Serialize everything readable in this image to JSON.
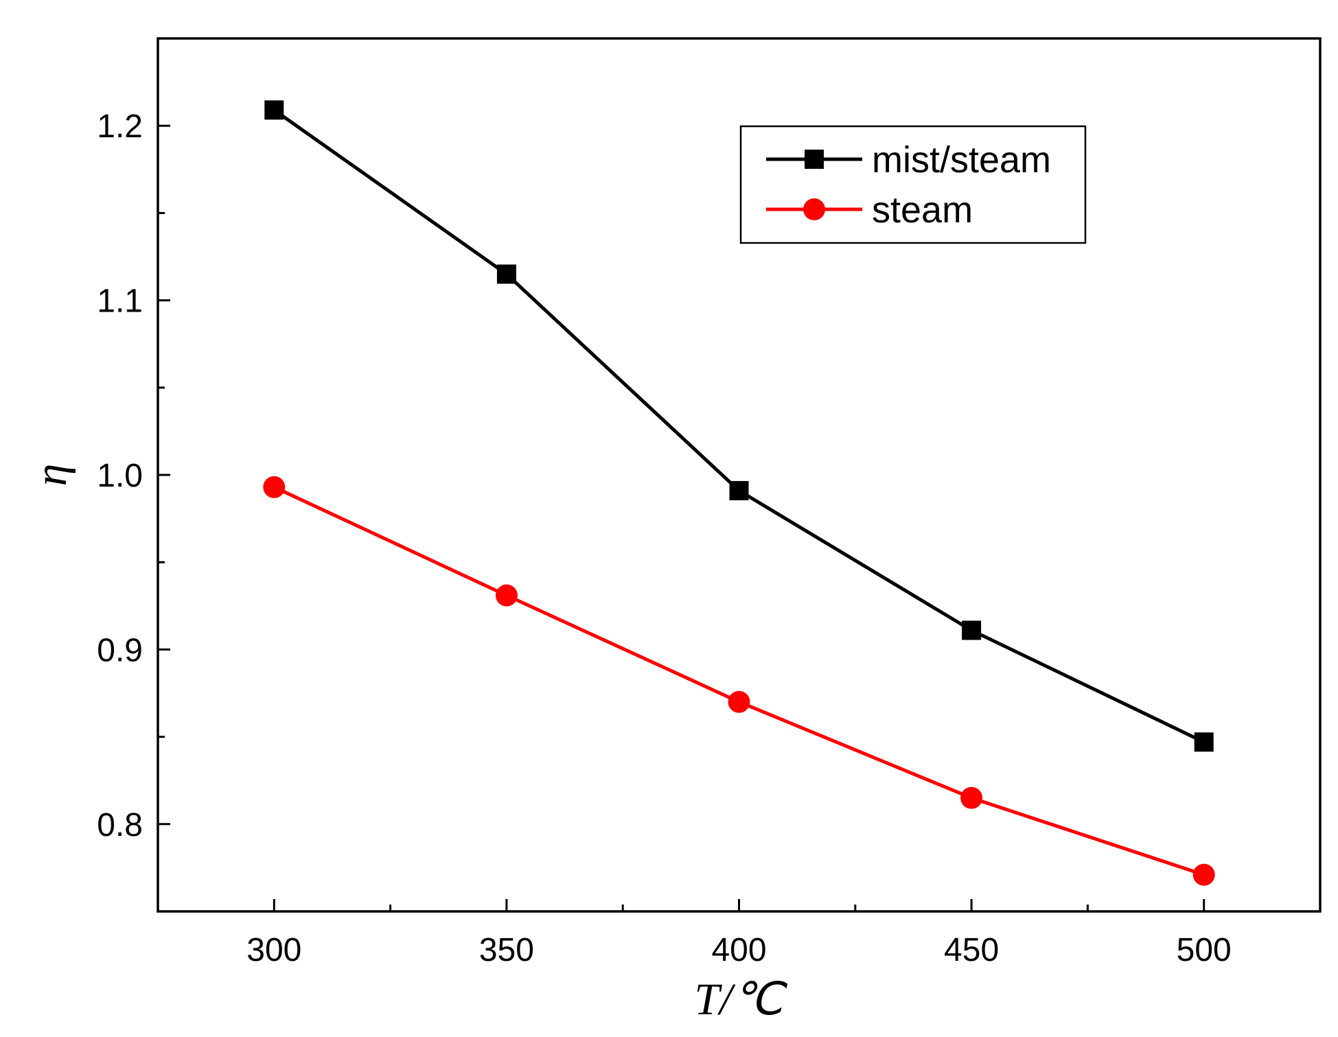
{
  "chart_data": {
    "type": "line",
    "title": "",
    "xlabel": "T/℃",
    "ylabel": "η",
    "xlim": [
      275,
      525
    ],
    "ylim": [
      0.75,
      1.25
    ],
    "x": [
      300,
      350,
      400,
      450,
      500
    ],
    "x_ticks": [
      300,
      350,
      400,
      450,
      500
    ],
    "x_tick_labels": [
      "300",
      "350",
      "400",
      "450",
      "500"
    ],
    "y_ticks": [
      0.8,
      0.9,
      1.0,
      1.1,
      1.2
    ],
    "y_tick_labels": [
      "0.8",
      "0.9",
      "1.0",
      "1.1",
      "1.2"
    ],
    "grid": false,
    "legend_position": "top-right",
    "series": [
      {
        "name": "mist/steam",
        "color": "#000000",
        "marker": "square",
        "values": [
          1.209,
          1.115,
          0.991,
          0.911,
          0.847
        ]
      },
      {
        "name": "steam",
        "color": "#ff0000",
        "marker": "circle",
        "values": [
          0.993,
          0.931,
          0.87,
          0.815,
          0.771
        ]
      }
    ]
  }
}
